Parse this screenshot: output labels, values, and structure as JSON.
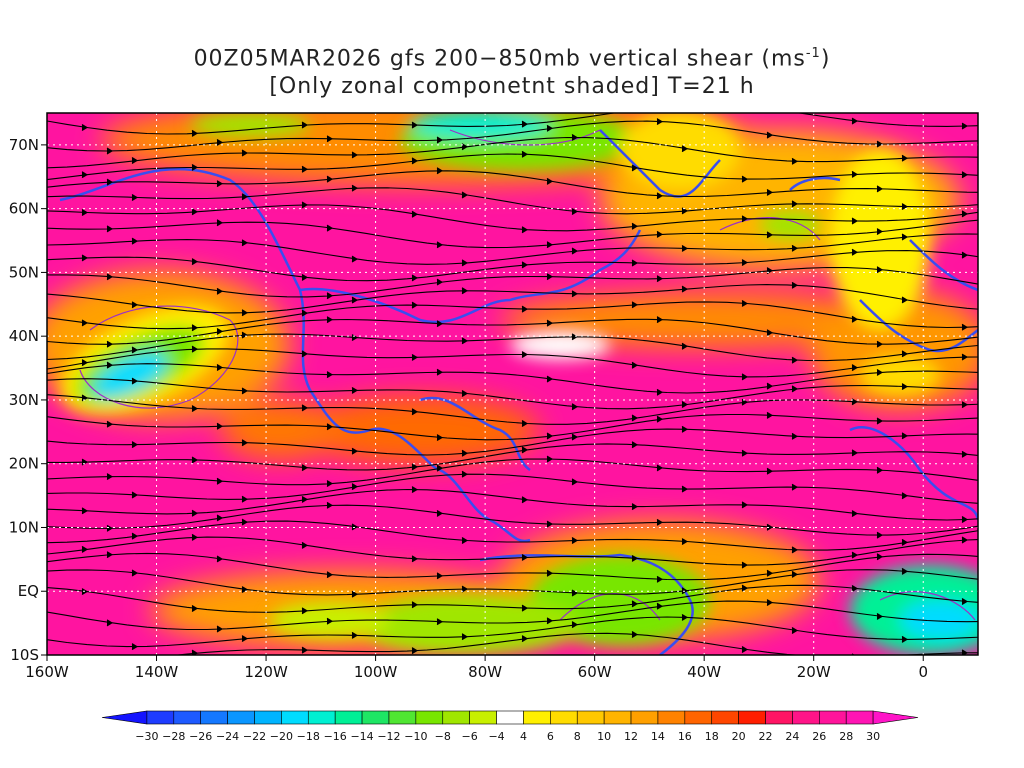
{
  "title": {
    "line1_pre": "00Z05MAR2026 gfs 200−850mb vertical shear (ms",
    "line1_sup": "-1",
    "line1_post": ")",
    "line2": "[Only zonal componetnt shaded] T=21 h"
  },
  "map": {
    "projection": "lat-lon",
    "lat_range": [
      -10,
      75
    ],
    "lon_range": [
      -160,
      10
    ],
    "lat_labels": [
      "70N",
      "60N",
      "50N",
      "40N",
      "30N",
      "20N",
      "10N",
      "EQ",
      "10S"
    ],
    "lon_labels": [
      "160W",
      "140W",
      "120W",
      "100W",
      "80W",
      "60W",
      "40W",
      "20W",
      "0"
    ],
    "lat_values": [
      70,
      60,
      50,
      40,
      30,
      20,
      10,
      0,
      -10
    ],
    "lon_values": [
      -160,
      -140,
      -120,
      -100,
      -80,
      -60,
      -40,
      -20,
      0
    ],
    "coastline_color": "#3a4df0",
    "contour_color": "#9b2fc8",
    "streamline_color": "#000000"
  },
  "colorbar": {
    "labels": [
      "−30",
      "−28",
      "−26",
      "−24",
      "−22",
      "−20",
      "−18",
      "−16",
      "−14",
      "−12",
      "−10",
      "−8",
      "−6",
      "−4",
      "4",
      "6",
      "8",
      "10",
      "12",
      "14",
      "16",
      "18",
      "20",
      "22",
      "24",
      "26",
      "28",
      "30"
    ],
    "colors": [
      "#1414ff",
      "#1e3cff",
      "#1e5aff",
      "#1478ff",
      "#0a96ff",
      "#00b4ff",
      "#00dcff",
      "#00f0d2",
      "#00f096",
      "#1ee664",
      "#50e632",
      "#78e600",
      "#a0e600",
      "#c8f000",
      "#ffffff",
      "#fff000",
      "#ffdc00",
      "#ffc800",
      "#ffb400",
      "#ffa000",
      "#ff8200",
      "#ff6400",
      "#ff4600",
      "#ff1e00",
      "#ff1464",
      "#ff1488",
      "#ff149b",
      "#ff14b4",
      "#ff14c8"
    ]
  }
}
